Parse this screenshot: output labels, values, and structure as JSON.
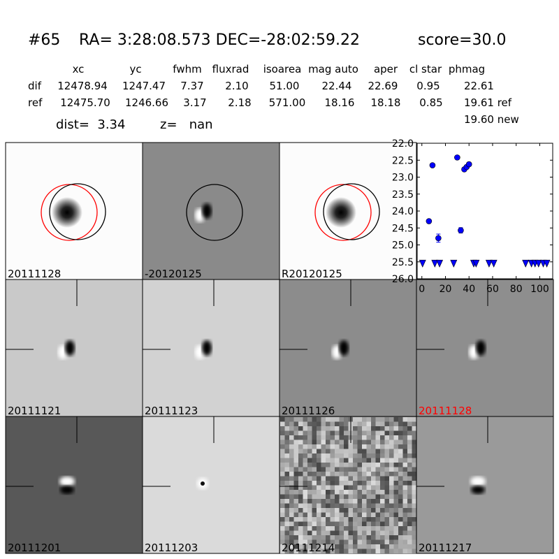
{
  "header": {
    "id": "#65",
    "coords": "RA= 3:28:08.573 DEC=-28:02:59.22",
    "score": "score=30.0"
  },
  "table": {
    "columns": [
      "xc",
      "yc",
      "fwhm",
      "fluxrad",
      "isoarea",
      "mag auto",
      "aper",
      "cl star",
      "phmag"
    ],
    "rows": [
      {
        "label": "dif",
        "values": [
          "12478.94",
          "1247.47",
          "7.37",
          "2.10",
          "51.00",
          "22.44",
          "22.69",
          "0.95",
          "22.61"
        ]
      },
      {
        "label": "ref",
        "values": [
          "12475.70",
          "1246.66",
          "3.17",
          "2.18",
          "571.00",
          "18.16",
          "18.18",
          "0.85",
          "19.61 ref"
        ]
      }
    ],
    "extra": "19.60 new"
  },
  "dist": "dist=  3.34",
  "z": "z=   nan",
  "panels": [
    {
      "label": "20111128"
    },
    {
      "label": "-20120125"
    },
    {
      "label": "R20120125"
    },
    {
      "label": "20111121"
    },
    {
      "label": "20111123"
    },
    {
      "label": "20111126"
    },
    {
      "label": "20111128",
      "label_color": "red"
    },
    {
      "label": "20111201"
    },
    {
      "label": "20111203"
    },
    {
      "label": "20111214"
    },
    {
      "label": "20111217"
    }
  ],
  "chart_data": {
    "type": "scatter",
    "xlim": [
      -4,
      111
    ],
    "xticks": [
      0,
      20,
      40,
      60,
      80,
      100
    ],
    "ylim": [
      22,
      26
    ],
    "y_inverted": true,
    "yticks": [
      {
        "value": 22,
        "label": "22.0"
      },
      22.5,
      {
        "value": 23,
        "label": "23.0"
      },
      23.5,
      {
        "value": 24,
        "label": "24.0"
      },
      24.5,
      {
        "value": 25,
        "label": "25.0"
      },
      25.5,
      {
        "value": 26,
        "label": "26.0"
      }
    ],
    "series": [
      {
        "marker": "o",
        "color": "#0000ff",
        "x": [
          6,
          9,
          14,
          30,
          33,
          36,
          38,
          40
        ],
        "values": [
          24.3,
          22.65,
          24.8,
          22.42,
          24.57,
          22.77,
          22.7,
          22.62
        ],
        "errors": [
          0.05,
          0.04,
          0.12,
          0.04,
          0.08,
          0.04,
          0.04,
          0.04
        ]
      },
      {
        "marker": "v",
        "color": "#0000ff",
        "x": [
          0.6,
          11,
          15,
          27,
          44,
          46,
          57,
          61,
          88,
          93,
          96,
          99,
          103,
          106
        ],
        "values": [
          25.55,
          25.55,
          25.55,
          25.55,
          25.55,
          25.55,
          25.55,
          25.55,
          25.55,
          25.55,
          25.55,
          25.55,
          25.55,
          25.55
        ]
      }
    ]
  }
}
